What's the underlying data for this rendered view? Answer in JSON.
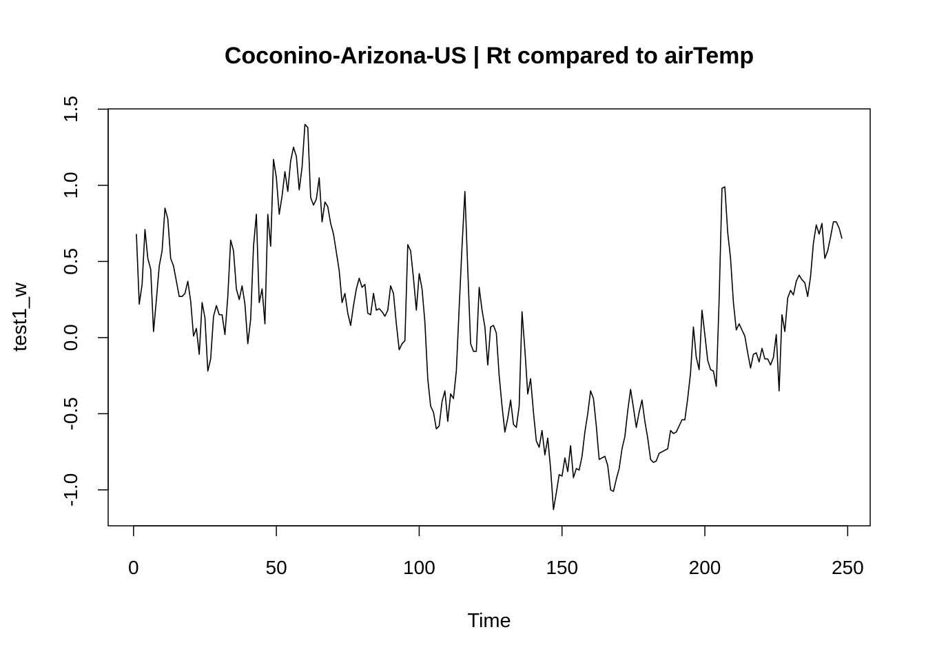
{
  "chart_data": {
    "type": "line",
    "title": "Coconino-Arizona-US | Rt compared to airTemp",
    "x_label": "Time",
    "y_label": "test1_w",
    "xlim": [
      -8.88,
      257.88
    ],
    "ylim": [
      -1.236,
      1.502
    ],
    "xticks": [
      0,
      50,
      100,
      150,
      200,
      250
    ],
    "yticks": [
      {
        "value": -1.0,
        "label": "-1.0"
      },
      -0.5,
      {
        "value": 0.0,
        "label": "0.0"
      },
      0.5,
      {
        "value": 1.0,
        "label": "1.0"
      },
      1.5
    ],
    "color": "#000000",
    "x": [
      1,
      2,
      3,
      4,
      5,
      6,
      7,
      8,
      9,
      10,
      11,
      12,
      13,
      14,
      15,
      16,
      17,
      18,
      19,
      20,
      21,
      22,
      23,
      24,
      25,
      26,
      27,
      28,
      29,
      30,
      31,
      32,
      33,
      34,
      35,
      36,
      37,
      38,
      39,
      40,
      41,
      42,
      43,
      44,
      45,
      46,
      47,
      48,
      49,
      50,
      51,
      52,
      53,
      54,
      55,
      56,
      57,
      58,
      59,
      60,
      61,
      62,
      63,
      64,
      65,
      66,
      67,
      68,
      69,
      70,
      71,
      72,
      73,
      74,
      75,
      76,
      77,
      78,
      79,
      80,
      81,
      82,
      83,
      84,
      85,
      86,
      87,
      88,
      89,
      90,
      91,
      92,
      93,
      94,
      95,
      96,
      97,
      98,
      99,
      100,
      101,
      102,
      103,
      104,
      105,
      106,
      107,
      108,
      109,
      110,
      111,
      112,
      113,
      114,
      115,
      116,
      117,
      118,
      119,
      120,
      121,
      122,
      123,
      124,
      125,
      126,
      127,
      128,
      129,
      130,
      131,
      132,
      133,
      134,
      135,
      136,
      137,
      138,
      139,
      140,
      141,
      142,
      143,
      144,
      145,
      146,
      147,
      148,
      149,
      150,
      151,
      152,
      153,
      154,
      155,
      156,
      157,
      158,
      159,
      160,
      161,
      162,
      163,
      164,
      165,
      166,
      167,
      168,
      169,
      170,
      171,
      172,
      173,
      174,
      175,
      176,
      177,
      178,
      179,
      180,
      181,
      182,
      183,
      184,
      185,
      186,
      187,
      188,
      189,
      190,
      191,
      192,
      193,
      194,
      195,
      196,
      197,
      198,
      199,
      200,
      201,
      202,
      203,
      204,
      205,
      206,
      207,
      208,
      209,
      210,
      211,
      212,
      213,
      214,
      215,
      216,
      217,
      218,
      219,
      220,
      221,
      222,
      223,
      224,
      225,
      226,
      227,
      228,
      229,
      230,
      231,
      232,
      233,
      234,
      235,
      236,
      237,
      238,
      239,
      240,
      241,
      242,
      243,
      244,
      245,
      246,
      247,
      248
    ],
    "values": [
      0.68,
      0.22,
      0.35,
      0.71,
      0.52,
      0.45,
      0.04,
      0.25,
      0.47,
      0.57,
      0.85,
      0.78,
      0.52,
      0.47,
      0.37,
      0.27,
      0.27,
      0.29,
      0.37,
      0.24,
      0.01,
      0.06,
      -0.11,
      0.23,
      0.13,
      -0.22,
      -0.14,
      0.14,
      0.21,
      0.15,
      0.15,
      0.02,
      0.27,
      0.64,
      0.57,
      0.32,
      0.25,
      0.34,
      0.22,
      -0.04,
      0.12,
      0.6,
      0.81,
      0.23,
      0.32,
      0.09,
      0.81,
      0.6,
      1.17,
      1.05,
      0.81,
      0.93,
      1.09,
      0.96,
      1.16,
      1.25,
      1.19,
      0.97,
      1.12,
      1.4,
      1.38,
      0.92,
      0.87,
      0.91,
      1.05,
      0.76,
      0.89,
      0.86,
      0.75,
      0.68,
      0.56,
      0.44,
      0.23,
      0.29,
      0.16,
      0.08,
      0.21,
      0.32,
      0.39,
      0.33,
      0.35,
      0.16,
      0.15,
      0.29,
      0.18,
      0.19,
      0.17,
      0.14,
      0.18,
      0.34,
      0.29,
      0.09,
      -0.08,
      -0.04,
      -0.02,
      0.61,
      0.57,
      0.39,
      0.18,
      0.42,
      0.32,
      0.1,
      -0.27,
      -0.45,
      -0.49,
      -0.6,
      -0.58,
      -0.42,
      -0.35,
      -0.55,
      -0.37,
      -0.4,
      -0.22,
      0.2,
      0.6,
      0.96,
      0.45,
      -0.04,
      -0.09,
      -0.09,
      0.33,
      0.18,
      0.07,
      -0.18,
      0.07,
      0.08,
      0.03,
      -0.25,
      -0.45,
      -0.62,
      -0.53,
      -0.41,
      -0.57,
      -0.59,
      -0.45,
      0.17,
      -0.08,
      -0.37,
      -0.27,
      -0.49,
      -0.68,
      -0.72,
      -0.61,
      -0.77,
      -0.66,
      -0.86,
      -1.13,
      -1.02,
      -0.9,
      -0.91,
      -0.79,
      -0.88,
      -0.71,
      -0.92,
      -0.86,
      -0.87,
      -0.78,
      -0.62,
      -0.5,
      -0.35,
      -0.4,
      -0.58,
      -0.8,
      -0.79,
      -0.78,
      -0.84,
      -1.0,
      -1.01,
      -0.93,
      -0.86,
      -0.73,
      -0.65,
      -0.48,
      -0.34,
      -0.46,
      -0.59,
      -0.49,
      -0.41,
      -0.55,
      -0.66,
      -0.8,
      -0.82,
      -0.81,
      -0.76,
      -0.75,
      -0.74,
      -0.73,
      -0.61,
      -0.63,
      -0.62,
      -0.58,
      -0.54,
      -0.54,
      -0.4,
      -0.23,
      0.07,
      -0.13,
      -0.21,
      0.18,
      0.02,
      -0.15,
      -0.21,
      -0.22,
      -0.32,
      0.25,
      0.98,
      0.99,
      0.69,
      0.52,
      0.23,
      0.05,
      0.09,
      0.05,
      0.01,
      -0.1,
      -0.2,
      -0.11,
      -0.1,
      -0.16,
      -0.07,
      -0.14,
      -0.14,
      -0.18,
      -0.13,
      0.02,
      -0.35,
      0.15,
      0.04,
      0.26,
      0.31,
      0.28,
      0.37,
      0.41,
      0.38,
      0.36,
      0.27,
      0.4,
      0.62,
      0.74,
      0.68,
      0.75,
      0.52,
      0.57,
      0.66,
      0.76,
      0.76,
      0.72,
      0.65
    ]
  }
}
